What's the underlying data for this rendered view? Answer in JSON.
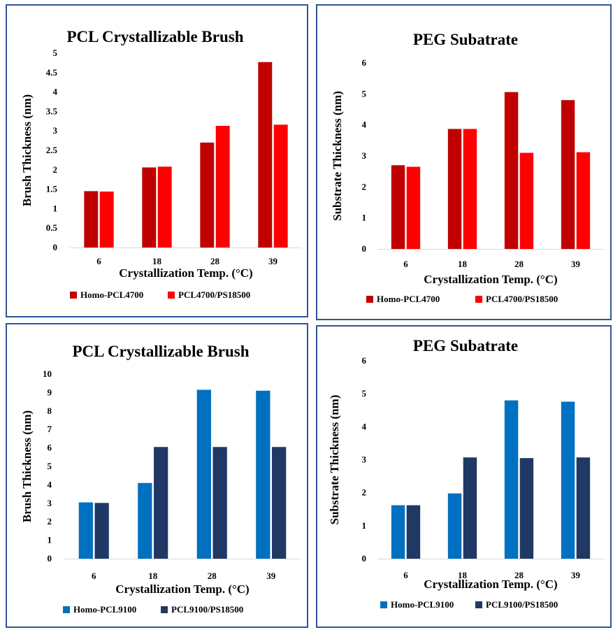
{
  "chart_data": [
    {
      "type": "bar",
      "title": "PCL Crystallizable  Brush",
      "xlabel": "Crystallization  Temp. (°C)",
      "ylabel": "Brush Thickness (nm)",
      "categories": [
        "6",
        "18",
        "28",
        "39"
      ],
      "ylim": [
        0,
        5
      ],
      "yticks": [
        "0",
        "0.5",
        "1",
        "1.5",
        "2",
        "2.5",
        "3",
        "3.5",
        "4",
        "4.5",
        "5"
      ],
      "grid": false,
      "legend": "bottom",
      "series": [
        {
          "name": "Homo-PCL4700",
          "color": "#c00000",
          "values": [
            1.45,
            2.06,
            2.7,
            4.77
          ]
        },
        {
          "name": "PCL4700/PS18500",
          "color": "#ff0000",
          "values": [
            1.44,
            2.08,
            3.13,
            3.16
          ]
        }
      ]
    },
    {
      "type": "bar",
      "title": "PEG Subatrate",
      "xlabel": "Crystallization  Temp. (°C)",
      "ylabel": "Substrate Thickness (nm)",
      "categories": [
        "6",
        "18",
        "28",
        "39"
      ],
      "ylim": [
        0,
        6
      ],
      "yticks": [
        "0",
        "1",
        "2",
        "3",
        "4",
        "5",
        "6"
      ],
      "grid": false,
      "legend": "bottom",
      "series": [
        {
          "name": "Homo-PCL4700",
          "color": "#c00000",
          "values": [
            2.7,
            3.87,
            5.06,
            4.8
          ]
        },
        {
          "name": "PCL4700/PS18500",
          "color": "#ff0000",
          "values": [
            2.65,
            3.87,
            3.1,
            3.12
          ]
        }
      ]
    },
    {
      "type": "bar",
      "title": "PCL Crystallizable  Brush",
      "xlabel": "Crystallization  Temp. (°C)",
      "ylabel": "Brush Thickness (nm)",
      "categories": [
        "6",
        "18",
        "28",
        "39"
      ],
      "ylim": [
        0,
        10
      ],
      "yticks": [
        "0",
        "1",
        "2",
        "3",
        "4",
        "5",
        "6",
        "7",
        "8",
        "9",
        "10"
      ],
      "grid": false,
      "legend": "bottom",
      "series": [
        {
          "name": "Homo-PCL9100",
          "color": "#0070c0",
          "values": [
            3.05,
            4.1,
            9.15,
            9.1
          ]
        },
        {
          "name": "PCL9100/PS18500",
          "color": "#203864",
          "values": [
            3.02,
            6.05,
            6.05,
            6.05
          ]
        }
      ]
    },
    {
      "type": "bar",
      "title": "PEG Subatrate",
      "xlabel": "Crystallization  Temp. (°C)",
      "ylabel": "Substrate Thickness (nm)",
      "categories": [
        "6",
        "18",
        "28",
        "39"
      ],
      "ylim": [
        0,
        6
      ],
      "yticks": [
        "0",
        "1",
        "2",
        "3",
        "4",
        "5",
        "6"
      ],
      "grid": false,
      "legend": "bottom",
      "series": [
        {
          "name": "Homo-PCL9100",
          "color": "#0070c0",
          "values": [
            1.62,
            1.98,
            4.8,
            4.76
          ]
        },
        {
          "name": "PCL9100/PS18500",
          "color": "#203864",
          "values": [
            1.62,
            3.07,
            3.05,
            3.07
          ]
        }
      ]
    }
  ]
}
